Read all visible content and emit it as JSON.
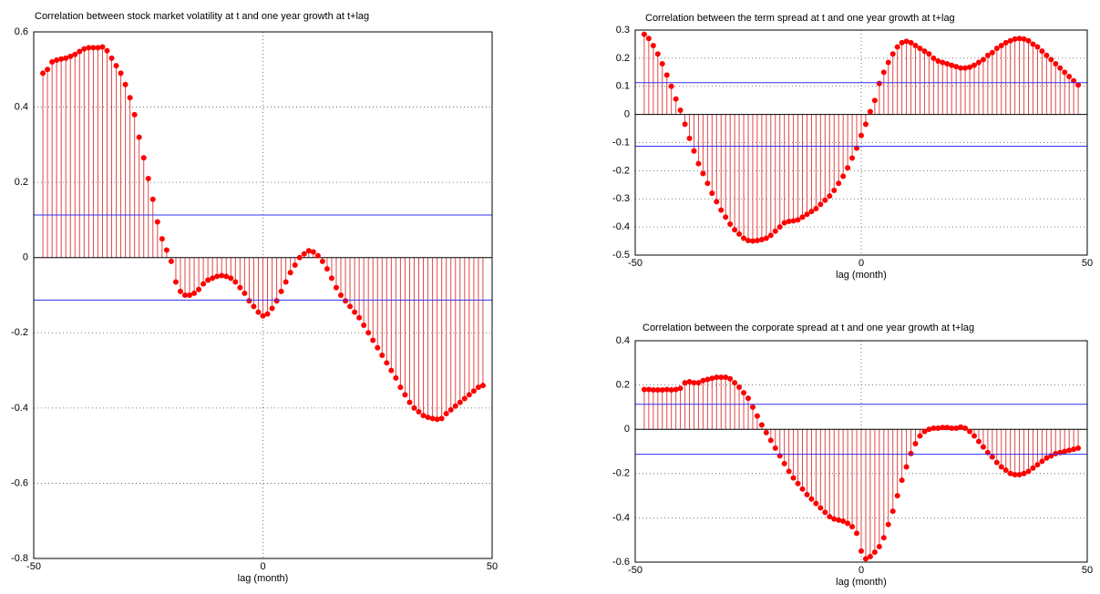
{
  "chart_data": [
    {
      "type": "stem",
      "title": "Correlation between stock market volatility at t and one year growth at t+lag",
      "x_label": "lag (month)",
      "x": [
        -48,
        -47,
        -46,
        -45,
        -44,
        -43,
        -42,
        -41,
        -40,
        -39,
        -38,
        -37,
        -36,
        -35,
        -34,
        -33,
        -32,
        -31,
        -30,
        -29,
        -28,
        -27,
        -26,
        -25,
        -24,
        -23,
        -22,
        -21,
        -20,
        -19,
        -18,
        -17,
        -16,
        -15,
        -14,
        -13,
        -12,
        -11,
        -10,
        -9,
        -8,
        -7,
        -6,
        -5,
        -4,
        -3,
        -2,
        -1,
        0,
        1,
        2,
        3,
        4,
        5,
        6,
        7,
        8,
        9,
        10,
        11,
        12,
        13,
        14,
        15,
        16,
        17,
        18,
        19,
        20,
        21,
        22,
        23,
        24,
        25,
        26,
        27,
        28,
        29,
        30,
        31,
        32,
        33,
        34,
        35,
        36,
        37,
        38,
        39,
        40,
        41,
        42,
        43,
        44,
        45,
        46,
        47,
        48
      ],
      "values": [
        0.49,
        0.5,
        0.52,
        0.525,
        0.528,
        0.53,
        0.535,
        0.54,
        0.548,
        0.555,
        0.558,
        0.558,
        0.558,
        0.56,
        0.55,
        0.53,
        0.51,
        0.49,
        0.46,
        0.425,
        0.38,
        0.32,
        0.265,
        0.21,
        0.155,
        0.095,
        0.05,
        0.02,
        -0.01,
        -0.065,
        -0.09,
        -0.1,
        -0.1,
        -0.095,
        -0.085,
        -0.07,
        -0.06,
        -0.055,
        -0.05,
        -0.048,
        -0.05,
        -0.055,
        -0.065,
        -0.08,
        -0.095,
        -0.115,
        -0.13,
        -0.145,
        -0.155,
        -0.15,
        -0.135,
        -0.115,
        -0.09,
        -0.065,
        -0.04,
        -0.02,
        0.0,
        0.01,
        0.018,
        0.015,
        0.005,
        -0.01,
        -0.03,
        -0.055,
        -0.08,
        -0.1,
        -0.115,
        -0.13,
        -0.145,
        -0.16,
        -0.18,
        -0.2,
        -0.22,
        -0.24,
        -0.26,
        -0.28,
        -0.3,
        -0.32,
        -0.345,
        -0.365,
        -0.385,
        -0.4,
        -0.41,
        -0.42,
        -0.425,
        -0.428,
        -0.43,
        -0.428,
        -0.415,
        -0.405,
        -0.395,
        -0.385,
        -0.375,
        -0.365,
        -0.355,
        -0.345,
        -0.34
      ],
      "color": "#ff0000",
      "stem_color": "#e04848",
      "xlim": [
        -50,
        50
      ],
      "xticks": [
        -50,
        0,
        50
      ],
      "ylim": [
        -0.8,
        0.6
      ],
      "yticks": [
        -0.8,
        -0.6,
        -0.4,
        -0.2,
        0,
        0.2,
        0.4,
        0.6
      ],
      "reference_lines": [
        0.113,
        -0.113
      ],
      "reference_color": "#3030ff",
      "grid": true
    },
    {
      "type": "stem",
      "title": "Correlation between the term spread at t and one year growth at t+lag",
      "x_label": "lag (month)",
      "x": [
        -48,
        -47,
        -46,
        -45,
        -44,
        -43,
        -42,
        -41,
        -40,
        -39,
        -38,
        -37,
        -36,
        -35,
        -34,
        -33,
        -32,
        -31,
        -30,
        -29,
        -28,
        -27,
        -26,
        -25,
        -24,
        -23,
        -22,
        -21,
        -20,
        -19,
        -18,
        -17,
        -16,
        -15,
        -14,
        -13,
        -12,
        -11,
        -10,
        -9,
        -8,
        -7,
        -6,
        -5,
        -4,
        -3,
        -2,
        -1,
        0,
        1,
        2,
        3,
        4,
        5,
        6,
        7,
        8,
        9,
        10,
        11,
        12,
        13,
        14,
        15,
        16,
        17,
        18,
        19,
        20,
        21,
        22,
        23,
        24,
        25,
        26,
        27,
        28,
        29,
        30,
        31,
        32,
        33,
        34,
        35,
        36,
        37,
        38,
        39,
        40,
        41,
        42,
        43,
        44,
        45,
        46,
        47,
        48
      ],
      "values": [
        0.285,
        0.27,
        0.245,
        0.215,
        0.18,
        0.14,
        0.1,
        0.055,
        0.015,
        -0.035,
        -0.085,
        -0.13,
        -0.175,
        -0.21,
        -0.245,
        -0.28,
        -0.31,
        -0.34,
        -0.365,
        -0.39,
        -0.41,
        -0.425,
        -0.44,
        -0.448,
        -0.45,
        -0.448,
        -0.445,
        -0.44,
        -0.43,
        -0.415,
        -0.4,
        -0.385,
        -0.38,
        -0.378,
        -0.375,
        -0.365,
        -0.355,
        -0.345,
        -0.335,
        -0.32,
        -0.305,
        -0.29,
        -0.27,
        -0.245,
        -0.22,
        -0.19,
        -0.155,
        -0.12,
        -0.075,
        -0.035,
        0.01,
        0.05,
        0.11,
        0.15,
        0.185,
        0.215,
        0.24,
        0.255,
        0.26,
        0.255,
        0.245,
        0.235,
        0.225,
        0.215,
        0.2,
        0.19,
        0.185,
        0.18,
        0.175,
        0.17,
        0.165,
        0.165,
        0.168,
        0.175,
        0.185,
        0.195,
        0.21,
        0.22,
        0.235,
        0.245,
        0.255,
        0.262,
        0.268,
        0.27,
        0.268,
        0.262,
        0.25,
        0.24,
        0.225,
        0.21,
        0.195,
        0.18,
        0.165,
        0.15,
        0.135,
        0.12,
        0.105
      ],
      "color": "#ff0000",
      "stem_color": "#e04848",
      "xlim": [
        -50,
        50
      ],
      "xticks": [
        -50,
        0,
        50
      ],
      "ylim": [
        -0.5,
        0.3
      ],
      "yticks": [
        -0.5,
        -0.4,
        -0.3,
        -0.2,
        -0.1,
        0,
        0.1,
        0.2,
        0.3
      ],
      "reference_lines": [
        0.113,
        -0.113
      ],
      "reference_color": "#3030ff",
      "grid": true
    },
    {
      "type": "stem",
      "title": "Correlation between the corporate spread at t and one year growth at t+lag",
      "x_label": "lag (month)",
      "x": [
        -48,
        -47,
        -46,
        -45,
        -44,
        -43,
        -42,
        -41,
        -40,
        -39,
        -38,
        -37,
        -36,
        -35,
        -34,
        -33,
        -32,
        -31,
        -30,
        -29,
        -28,
        -27,
        -26,
        -25,
        -24,
        -23,
        -22,
        -21,
        -20,
        -19,
        -18,
        -17,
        -16,
        -15,
        -14,
        -13,
        -12,
        -11,
        -10,
        -9,
        -8,
        -7,
        -6,
        -5,
        -4,
        -3,
        -2,
        -1,
        0,
        1,
        2,
        3,
        4,
        5,
        6,
        7,
        8,
        9,
        10,
        11,
        12,
        13,
        14,
        15,
        16,
        17,
        18,
        19,
        20,
        21,
        22,
        23,
        24,
        25,
        26,
        27,
        28,
        29,
        30,
        31,
        32,
        33,
        34,
        35,
        36,
        37,
        38,
        39,
        40,
        41,
        42,
        43,
        44,
        45,
        46,
        47,
        48
      ],
      "values": [
        0.18,
        0.18,
        0.178,
        0.178,
        0.178,
        0.18,
        0.178,
        0.18,
        0.185,
        0.21,
        0.215,
        0.21,
        0.21,
        0.22,
        0.225,
        0.23,
        0.235,
        0.235,
        0.235,
        0.228,
        0.21,
        0.19,
        0.165,
        0.14,
        0.1,
        0.06,
        0.02,
        -0.015,
        -0.05,
        -0.085,
        -0.12,
        -0.155,
        -0.19,
        -0.22,
        -0.245,
        -0.27,
        -0.295,
        -0.315,
        -0.335,
        -0.355,
        -0.375,
        -0.395,
        -0.405,
        -0.41,
        -0.415,
        -0.425,
        -0.44,
        -0.47,
        -0.55,
        -0.585,
        -0.575,
        -0.555,
        -0.53,
        -0.49,
        -0.43,
        -0.37,
        -0.3,
        -0.23,
        -0.17,
        -0.11,
        -0.065,
        -0.03,
        -0.01,
        0.0,
        0.005,
        0.005,
        0.008,
        0.008,
        0.005,
        0.005,
        0.01,
        0.005,
        -0.01,
        -0.03,
        -0.055,
        -0.08,
        -0.105,
        -0.125,
        -0.15,
        -0.17,
        -0.185,
        -0.2,
        -0.205,
        -0.205,
        -0.2,
        -0.19,
        -0.175,
        -0.16,
        -0.145,
        -0.13,
        -0.12,
        -0.11,
        -0.105,
        -0.1,
        -0.095,
        -0.09,
        -0.085
      ],
      "color": "#ff0000",
      "stem_color": "#e04848",
      "xlim": [
        -50,
        50
      ],
      "xticks": [
        -50,
        0,
        50
      ],
      "ylim": [
        -0.6,
        0.4
      ],
      "yticks": [
        -0.6,
        -0.4,
        -0.2,
        0,
        0.2,
        0.4
      ],
      "reference_lines": [
        0.113,
        -0.113
      ],
      "reference_color": "#3030ff",
      "grid": true
    }
  ]
}
